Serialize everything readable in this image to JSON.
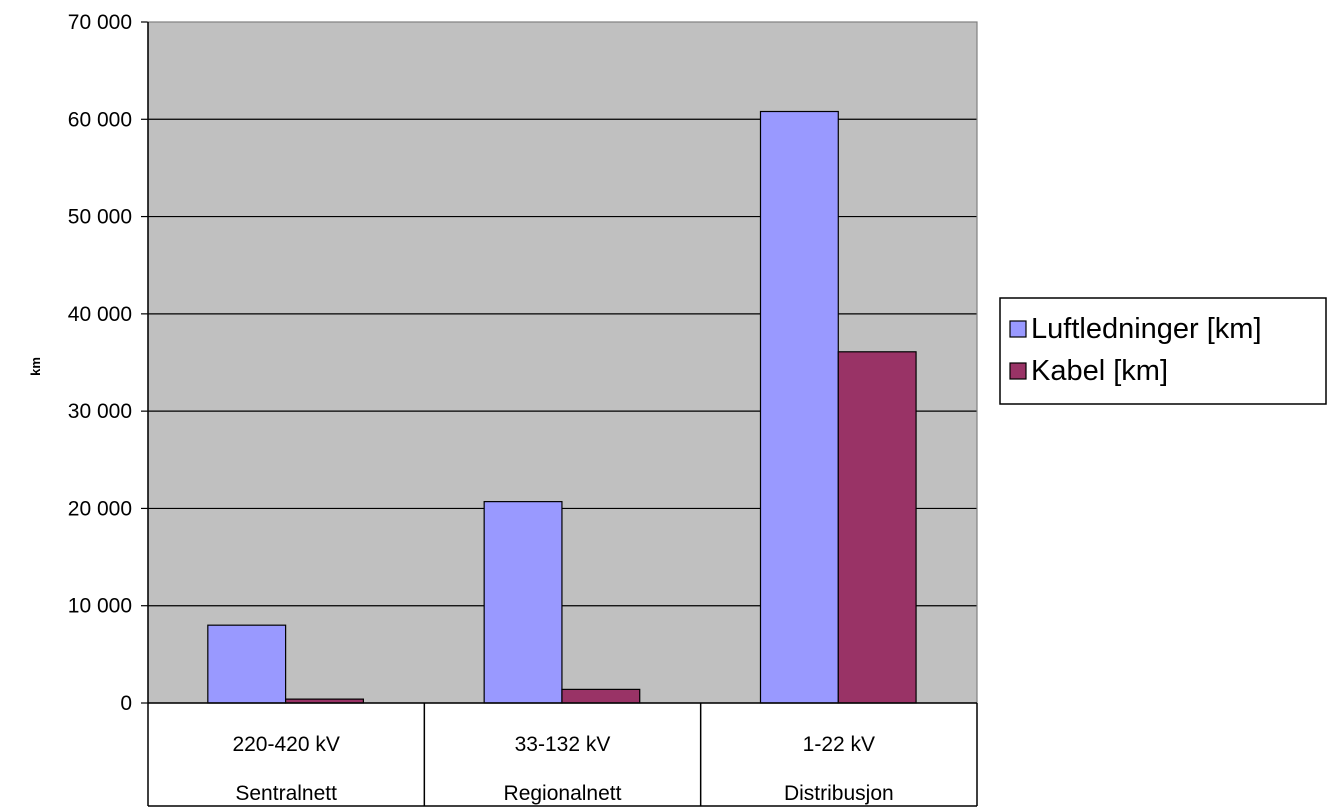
{
  "chart_data": {
    "type": "bar",
    "title": "",
    "xlabel": "",
    "ylabel": "km",
    "ylim": [
      0,
      70000
    ],
    "y_ticks": [
      0,
      10000,
      20000,
      30000,
      40000,
      50000,
      60000,
      70000
    ],
    "y_tick_labels": [
      "0",
      "10 000",
      "20 000",
      "30 000",
      "40 000",
      "50 000",
      "60 000",
      "70 000"
    ],
    "grid": true,
    "plot_background": "#c0c0c0",
    "legend_position": "right",
    "categories": [
      {
        "voltage": "220-420 kV",
        "network": "Sentralnett"
      },
      {
        "voltage": "33-132 kV",
        "network": "Regionalnett"
      },
      {
        "voltage": "1-22 kV",
        "network": "Distribusjon"
      }
    ],
    "series": [
      {
        "name": "Luftledninger [km]",
        "color": "#9999ff",
        "values": [
          8000,
          20700,
          60800
        ]
      },
      {
        "name": "Kabel [km]",
        "color": "#993366",
        "values": [
          400,
          1400,
          36100
        ]
      }
    ]
  }
}
